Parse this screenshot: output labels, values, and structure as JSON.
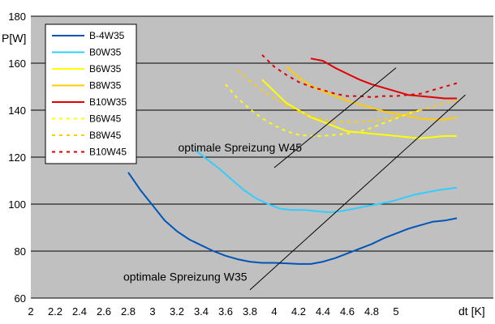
{
  "chart_data": {
    "type": "line",
    "xlabel": "dt [K]",
    "ylabel": "P[W]",
    "xlim": [
      2.0,
      5.8
    ],
    "ylim": [
      60,
      180
    ],
    "grid": "horizontal",
    "legend_position": "top-left",
    "colors": {
      "plot_background": "#c0c0c0",
      "grid": "#000000",
      "blue": "#0055b8",
      "cyan": "#33ccff",
      "yellow": "#ffff00",
      "gold": "#ffcc00",
      "red": "#e00000"
    },
    "x_ticks": [
      "2",
      "2.2",
      "2.4",
      "2.6",
      "2.8",
      "3",
      "3.2",
      "3.4",
      "3.6",
      "3.8",
      "4",
      "4.2",
      "4.4",
      "4.6",
      "4.8",
      "5"
    ],
    "y_ticks": [
      "60",
      "80",
      "100",
      "120",
      "140",
      "160",
      "180"
    ],
    "series": [
      {
        "name": "B-4W35",
        "color": "#0055b8",
        "style": "solid",
        "x": [
          2.8,
          2.9,
          3.0,
          3.1,
          3.2,
          3.3,
          3.4,
          3.5,
          3.6,
          3.7,
          3.8,
          3.9,
          4.0,
          4.1,
          4.2,
          4.3,
          4.4,
          4.5,
          4.6,
          4.7,
          4.8,
          4.9,
          5.0,
          5.1,
          5.2,
          5.3,
          5.4,
          5.5
        ],
        "y": [
          113.5,
          106,
          99.5,
          93,
          88.5,
          85,
          82.5,
          80,
          78,
          76.5,
          75.5,
          75,
          75,
          74.8,
          74.5,
          74.5,
          75.5,
          77,
          79,
          81,
          83,
          85.5,
          87.5,
          89.5,
          91,
          92.5,
          93,
          94
        ]
      },
      {
        "name": "B0W35",
        "color": "#33ccff",
        "style": "solid",
        "x": [
          3.35,
          3.45,
          3.55,
          3.65,
          3.75,
          3.85,
          3.95,
          4.05,
          4.15,
          4.25,
          4.35,
          4.45,
          4.55,
          4.65,
          4.75,
          4.85,
          4.95,
          5.05,
          5.15,
          5.25,
          5.35,
          5.5
        ],
        "y": [
          123,
          119,
          115,
          110.5,
          106,
          102.5,
          100,
          98,
          97.5,
          97.5,
          97,
          96.5,
          97,
          98,
          99,
          100,
          101,
          102.5,
          104,
          105,
          106,
          107
        ]
      },
      {
        "name": "B6W35",
        "color": "#ffff00",
        "style": "solid",
        "x": [
          3.9,
          4.0,
          4.1,
          4.2,
          4.3,
          4.4,
          4.5,
          4.6,
          4.7,
          4.8,
          4.9,
          5.0,
          5.1,
          5.2,
          5.3,
          5.4,
          5.5
        ],
        "y": [
          153,
          148,
          143,
          140,
          137,
          135,
          133,
          131,
          130.5,
          130,
          129.5,
          129,
          128.5,
          128,
          128.5,
          129,
          129
        ]
      },
      {
        "name": "B8W35",
        "color": "#ffcc00",
        "style": "solid",
        "x": [
          4.1,
          4.2,
          4.3,
          4.4,
          4.5,
          4.6,
          4.7,
          4.8,
          4.9,
          5.0,
          5.1,
          5.2,
          5.3,
          5.4,
          5.5
        ],
        "y": [
          158.5,
          154,
          150.5,
          148,
          146,
          144,
          142.5,
          141,
          139.5,
          138.5,
          137.5,
          136.5,
          136,
          136,
          137
        ]
      },
      {
        "name": "B10W35",
        "color": "#e00000",
        "style": "solid",
        "x": [
          4.3,
          4.4,
          4.5,
          4.6,
          4.7,
          4.8,
          4.9,
          5.0,
          5.1,
          5.2,
          5.3,
          5.4,
          5.5
        ],
        "y": [
          162,
          161,
          158,
          155.5,
          153,
          151,
          149.5,
          148,
          146.5,
          146,
          145.5,
          145,
          145
        ]
      },
      {
        "name": "B6W45",
        "color": "#ffff00",
        "style": "dashed",
        "x": [
          3.6,
          3.7,
          3.8,
          3.9,
          4.0,
          4.1,
          4.2,
          4.3,
          4.4,
          4.5,
          4.6,
          4.7,
          4.8,
          4.9,
          5.0,
          5.1,
          5.2
        ],
        "y": [
          151,
          145,
          140.5,
          136.5,
          133.5,
          131,
          129.5,
          129,
          129,
          129.5,
          130,
          131,
          132.5,
          134.5,
          136.5,
          138.5,
          140
        ]
      },
      {
        "name": "B8W45",
        "color": "#ffcc00",
        "style": "dashed",
        "x": [
          3.7,
          3.8,
          3.9,
          4.0,
          4.1,
          4.2,
          4.3,
          4.4,
          4.5,
          4.6,
          4.7,
          4.8,
          4.9,
          5.0,
          5.1,
          5.2,
          5.3,
          5.4,
          5.5
        ],
        "y": [
          157,
          152.5,
          148.5,
          145,
          142,
          139.5,
          137.5,
          136,
          135,
          135,
          135,
          135.5,
          136,
          137,
          138.5,
          140,
          141.5,
          143,
          144
        ]
      },
      {
        "name": "B10W45",
        "color": "#e00000",
        "style": "dashed",
        "x": [
          3.9,
          4.0,
          4.1,
          4.2,
          4.3,
          4.4,
          4.5,
          4.6,
          4.7,
          4.8,
          4.9,
          5.0,
          5.1,
          5.2,
          5.3,
          5.4,
          5.5
        ],
        "y": [
          163.5,
          158.5,
          155,
          152,
          150,
          148.5,
          147,
          146,
          146,
          145.5,
          146,
          146,
          146.5,
          147,
          148.5,
          150,
          151.5
        ]
      }
    ],
    "annotations": [
      {
        "text": "optimale Spreizung W45",
        "anchor": [
          3.21,
          122.5
        ],
        "line": {
          "x": [
            4.0,
            5.0
          ],
          "y": [
            115.5,
            158
          ]
        }
      },
      {
        "text": "optimale Spreizung W35",
        "anchor": [
          2.76,
          67.5
        ],
        "line": {
          "x": [
            3.8,
            5.57
          ],
          "y": [
            63.5,
            146.5
          ]
        }
      }
    ]
  }
}
